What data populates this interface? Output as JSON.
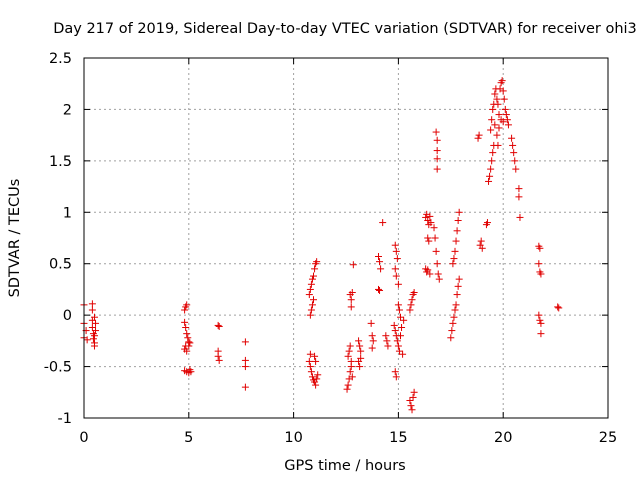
{
  "chart_data": {
    "type": "scatter",
    "title": "Day 217 of 2019, Sidereal Day-to-day VTEC variation (SDTVAR) for receiver ohi3",
    "xlabel": "GPS time / hours",
    "ylabel": "SDTVAR / TECUs",
    "xlim": [
      0,
      25
    ],
    "ylim": [
      -1,
      2.5
    ],
    "x_ticks": [
      0,
      5,
      10,
      15,
      20,
      25
    ],
    "y_ticks": [
      -1,
      -0.5,
      0,
      0.5,
      1,
      1.5,
      2,
      2.5
    ],
    "x_tick_labels": [
      "0",
      "5",
      "10",
      "15",
      "20",
      "25"
    ],
    "y_tick_labels": [
      "-1",
      "-0.5",
      "0",
      "0.5",
      "1",
      "1.5",
      "2",
      "2.5"
    ],
    "grid": true,
    "marker": "+",
    "color": "#e00000",
    "series": [
      {
        "name": "SDTVAR",
        "points": [
          [
            0.0,
            0.1
          ],
          [
            0.0,
            -0.08
          ],
          [
            0.0,
            -0.22
          ],
          [
            0.1,
            -0.15
          ],
          [
            0.15,
            -0.24
          ],
          [
            0.4,
            0.11
          ],
          [
            0.4,
            0.05
          ],
          [
            0.4,
            -0.05
          ],
          [
            0.4,
            -0.12
          ],
          [
            0.45,
            -0.18
          ],
          [
            0.45,
            -0.23
          ],
          [
            0.5,
            -0.27
          ],
          [
            0.5,
            -0.3
          ],
          [
            0.5,
            -0.02
          ],
          [
            0.55,
            -0.08
          ],
          [
            0.55,
            -0.15
          ],
          [
            0.5,
            -0.2
          ],
          [
            4.8,
            0.05
          ],
          [
            4.85,
            0.08
          ],
          [
            4.9,
            0.1
          ],
          [
            4.8,
            -0.07
          ],
          [
            4.85,
            -0.12
          ],
          [
            4.9,
            -0.18
          ],
          [
            4.95,
            -0.22
          ],
          [
            5.0,
            -0.26
          ],
          [
            4.8,
            -0.33
          ],
          [
            4.85,
            -0.3
          ],
          [
            4.9,
            -0.35
          ],
          [
            5.0,
            -0.3
          ],
          [
            5.05,
            -0.27
          ],
          [
            4.8,
            -0.54
          ],
          [
            4.9,
            -0.55
          ],
          [
            5.0,
            -0.56
          ],
          [
            5.05,
            -0.53
          ],
          [
            5.1,
            -0.55
          ],
          [
            6.4,
            -0.1
          ],
          [
            6.45,
            -0.11
          ],
          [
            6.4,
            -0.35
          ],
          [
            6.4,
            -0.4
          ],
          [
            6.45,
            -0.44
          ],
          [
            7.7,
            -0.26
          ],
          [
            7.7,
            -0.44
          ],
          [
            7.7,
            -0.5
          ],
          [
            7.7,
            -0.7
          ],
          [
            10.75,
            0.2
          ],
          [
            10.8,
            0.25
          ],
          [
            10.85,
            0.3
          ],
          [
            10.9,
            0.35
          ],
          [
            10.95,
            0.38
          ],
          [
            11.0,
            0.45
          ],
          [
            11.05,
            0.5
          ],
          [
            11.1,
            0.52
          ],
          [
            10.8,
            0.0
          ],
          [
            10.85,
            0.05
          ],
          [
            10.9,
            0.1
          ],
          [
            10.95,
            0.15
          ],
          [
            10.75,
            -0.45
          ],
          [
            10.8,
            -0.5
          ],
          [
            10.85,
            -0.55
          ],
          [
            10.9,
            -0.6
          ],
          [
            10.95,
            -0.63
          ],
          [
            11.0,
            -0.65
          ],
          [
            11.05,
            -0.68
          ],
          [
            11.1,
            -0.62
          ],
          [
            11.15,
            -0.58
          ],
          [
            11.0,
            -0.4
          ],
          [
            11.05,
            -0.45
          ],
          [
            10.8,
            -0.38
          ],
          [
            12.55,
            -0.72
          ],
          [
            12.6,
            -0.68
          ],
          [
            12.65,
            -0.62
          ],
          [
            12.7,
            -0.55
          ],
          [
            12.75,
            -0.5
          ],
          [
            12.6,
            -0.4
          ],
          [
            12.65,
            -0.35
          ],
          [
            12.7,
            -0.3
          ],
          [
            12.75,
            -0.45
          ],
          [
            12.8,
            -0.6
          ],
          [
            12.7,
            0.2
          ],
          [
            12.75,
            0.15
          ],
          [
            12.8,
            0.22
          ],
          [
            12.75,
            0.08
          ],
          [
            12.85,
            0.49
          ],
          [
            13.1,
            -0.25
          ],
          [
            13.15,
            -0.3
          ],
          [
            13.2,
            -0.35
          ],
          [
            13.2,
            -0.42
          ],
          [
            13.15,
            -0.5
          ],
          [
            13.1,
            -0.45
          ],
          [
            13.7,
            -0.08
          ],
          [
            13.75,
            -0.2
          ],
          [
            13.8,
            -0.25
          ],
          [
            13.75,
            -0.32
          ],
          [
            14.05,
            0.57
          ],
          [
            14.1,
            0.52
          ],
          [
            14.15,
            0.45
          ],
          [
            14.05,
            0.25
          ],
          [
            14.1,
            0.24
          ],
          [
            14.25,
            0.9
          ],
          [
            14.4,
            -0.2
          ],
          [
            14.45,
            -0.25
          ],
          [
            14.5,
            -0.3
          ],
          [
            14.85,
            0.68
          ],
          [
            14.9,
            0.62
          ],
          [
            14.95,
            0.55
          ],
          [
            14.85,
            0.45
          ],
          [
            14.9,
            0.38
          ],
          [
            15.0,
            0.3
          ],
          [
            14.8,
            -0.1
          ],
          [
            14.85,
            -0.15
          ],
          [
            14.9,
            -0.2
          ],
          [
            14.95,
            -0.25
          ],
          [
            15.0,
            -0.3
          ],
          [
            15.05,
            -0.35
          ],
          [
            15.1,
            -0.2
          ],
          [
            15.15,
            -0.12
          ],
          [
            15.2,
            -0.38
          ],
          [
            15.25,
            -0.05
          ],
          [
            15.0,
            0.1
          ],
          [
            15.05,
            0.05
          ],
          [
            15.1,
            -0.02
          ],
          [
            14.85,
            -0.55
          ],
          [
            14.9,
            -0.6
          ],
          [
            15.55,
            -0.83
          ],
          [
            15.6,
            -0.88
          ],
          [
            15.65,
            -0.92
          ],
          [
            15.7,
            -0.8
          ],
          [
            15.75,
            -0.75
          ],
          [
            15.6,
            0.1
          ],
          [
            15.65,
            0.15
          ],
          [
            15.7,
            0.2
          ],
          [
            15.75,
            0.22
          ],
          [
            15.55,
            0.05
          ],
          [
            16.3,
            0.95
          ],
          [
            16.35,
            0.98
          ],
          [
            16.4,
            0.92
          ],
          [
            16.45,
            0.88
          ],
          [
            16.5,
            0.96
          ],
          [
            16.55,
            0.9
          ],
          [
            16.4,
            0.75
          ],
          [
            16.45,
            0.72
          ],
          [
            16.3,
            0.45
          ],
          [
            16.35,
            0.42
          ],
          [
            16.4,
            0.44
          ],
          [
            16.5,
            0.4
          ],
          [
            16.8,
            1.78
          ],
          [
            16.85,
            1.7
          ],
          [
            16.85,
            1.6
          ],
          [
            16.85,
            1.52
          ],
          [
            16.85,
            1.42
          ],
          [
            16.7,
            0.85
          ],
          [
            16.75,
            0.75
          ],
          [
            16.8,
            0.62
          ],
          [
            16.85,
            0.5
          ],
          [
            16.9,
            0.4
          ],
          [
            16.95,
            0.35
          ],
          [
            17.5,
            -0.22
          ],
          [
            17.55,
            -0.15
          ],
          [
            17.6,
            -0.08
          ],
          [
            17.65,
            -0.02
          ],
          [
            17.7,
            0.05
          ],
          [
            17.75,
            0.1
          ],
          [
            17.8,
            0.2
          ],
          [
            17.85,
            0.28
          ],
          [
            17.9,
            0.35
          ],
          [
            17.6,
            0.5
          ],
          [
            17.65,
            0.55
          ],
          [
            17.7,
            0.62
          ],
          [
            17.75,
            0.72
          ],
          [
            17.8,
            0.82
          ],
          [
            17.85,
            0.92
          ],
          [
            17.9,
            1.0
          ],
          [
            18.9,
            0.68
          ],
          [
            18.95,
            0.72
          ],
          [
            19.0,
            0.65
          ],
          [
            19.2,
            0.88
          ],
          [
            19.25,
            0.9
          ],
          [
            18.8,
            1.72
          ],
          [
            18.85,
            1.75
          ],
          [
            19.3,
            1.3
          ],
          [
            19.35,
            1.35
          ],
          [
            19.4,
            1.42
          ],
          [
            19.45,
            1.5
          ],
          [
            19.5,
            1.58
          ],
          [
            19.55,
            1.65
          ],
          [
            19.4,
            1.8
          ],
          [
            19.45,
            1.9
          ],
          [
            19.5,
            2.0
          ],
          [
            19.55,
            2.05
          ],
          [
            19.6,
            2.15
          ],
          [
            19.65,
            2.2
          ],
          [
            19.7,
            2.1
          ],
          [
            19.75,
            2.05
          ],
          [
            19.8,
            1.95
          ],
          [
            19.85,
            2.2
          ],
          [
            19.9,
            2.26
          ],
          [
            19.95,
            2.28
          ],
          [
            20.0,
            2.18
          ],
          [
            20.05,
            2.1
          ],
          [
            20.1,
            2.0
          ],
          [
            20.15,
            1.95
          ],
          [
            20.2,
            1.9
          ],
          [
            20.25,
            1.85
          ],
          [
            19.6,
            1.85
          ],
          [
            19.7,
            1.75
          ],
          [
            19.8,
            1.82
          ],
          [
            19.9,
            1.9
          ],
          [
            20.0,
            1.88
          ],
          [
            19.75,
            1.65
          ],
          [
            20.4,
            1.72
          ],
          [
            20.45,
            1.65
          ],
          [
            20.5,
            1.58
          ],
          [
            20.55,
            1.5
          ],
          [
            20.6,
            1.42
          ],
          [
            20.75,
            1.23
          ],
          [
            20.75,
            1.15
          ],
          [
            20.8,
            0.95
          ],
          [
            21.7,
            0.67
          ],
          [
            21.75,
            0.65
          ],
          [
            21.7,
            0.5
          ],
          [
            21.75,
            0.42
          ],
          [
            21.8,
            0.4
          ],
          [
            21.7,
            0.0
          ],
          [
            21.75,
            -0.05
          ],
          [
            21.8,
            -0.08
          ],
          [
            21.8,
            -0.18
          ],
          [
            22.6,
            0.08
          ],
          [
            22.65,
            0.07
          ]
        ]
      }
    ]
  }
}
